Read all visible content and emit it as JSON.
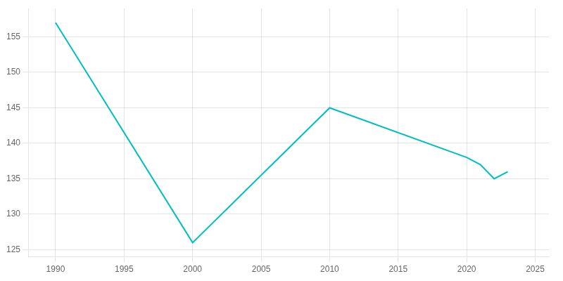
{
  "chart_data": {
    "type": "line",
    "x": [
      1990,
      2000,
      2010,
      2020,
      2021,
      2022,
      2023
    ],
    "values": [
      157,
      126,
      145,
      138,
      137,
      135,
      136
    ],
    "color": "#00BFBF",
    "xlim": [
      1988,
      2026
    ],
    "ylim": [
      124,
      159
    ],
    "xticks": [
      1990,
      1995,
      2000,
      2005,
      2010,
      2015,
      2020,
      2025
    ],
    "yticks": [
      125,
      130,
      135,
      140,
      145,
      150,
      155
    ],
    "grid": true
  }
}
